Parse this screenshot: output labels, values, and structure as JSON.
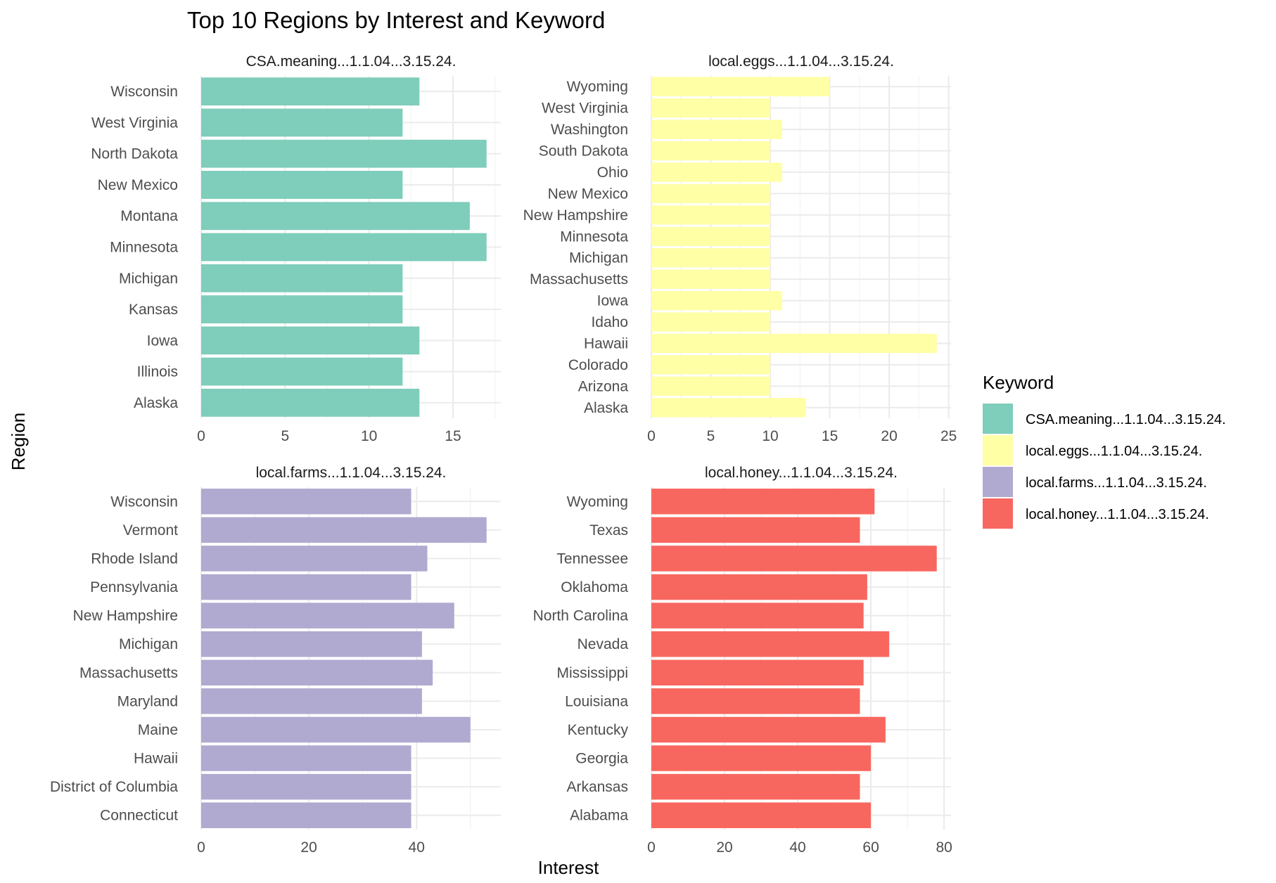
{
  "chart_data": {
    "type": "bar",
    "orientation": "horizontal",
    "title": "Top 10 Regions by Interest and Keyword",
    "xlabel": "Interest",
    "ylabel": "Region",
    "grid": true,
    "legend": {
      "title": "Keyword",
      "position": "right",
      "entries": [
        {
          "label": "CSA.meaning...1.1.04...3.15.24.",
          "color": "#7fcdbb"
        },
        {
          "label": "local.eggs...1.1.04...3.15.24.",
          "color": "#ffffa6"
        },
        {
          "label": "local.farms...1.1.04...3.15.24.",
          "color": "#b0aad0"
        },
        {
          "label": "local.honey...1.1.04...3.15.24.",
          "color": "#f8675f"
        }
      ]
    },
    "panels": [
      {
        "title": "CSA.meaning...1.1.04...3.15.24.",
        "color": "#7fcdbb",
        "xlim": [
          0,
          17.85
        ],
        "xticks": [
          0,
          5,
          10,
          15
        ],
        "categories": [
          "Wisconsin",
          "West Virginia",
          "North Dakota",
          "New Mexico",
          "Montana",
          "Minnesota",
          "Michigan",
          "Kansas",
          "Iowa",
          "Illinois",
          "Alaska"
        ],
        "values": [
          13,
          12,
          17,
          12,
          16,
          17,
          12,
          12,
          13,
          12,
          13
        ]
      },
      {
        "title": "local.eggs...1.1.04...3.15.24.",
        "color": "#ffffa6",
        "xlim": [
          0,
          25.2
        ],
        "xticks": [
          0,
          5,
          10,
          15,
          20,
          25
        ],
        "categories": [
          "Wyoming",
          "West Virginia",
          "Washington",
          "South Dakota",
          "Ohio",
          "New Mexico",
          "New Hampshire",
          "Minnesota",
          "Michigan",
          "Massachusetts",
          "Iowa",
          "Idaho",
          "Hawaii",
          "Colorado",
          "Arizona",
          "Alaska"
        ],
        "values": [
          15,
          10,
          11,
          10,
          11,
          10,
          10,
          10,
          10,
          10,
          11,
          10,
          24,
          10,
          10,
          13
        ]
      },
      {
        "title": "local.farms...1.1.04...3.15.24.",
        "color": "#b0aad0",
        "xlim": [
          0,
          55.65
        ],
        "xticks": [
          0,
          20,
          40
        ],
        "categories": [
          "Wisconsin",
          "Vermont",
          "Rhode Island",
          "Pennsylvania",
          "New Hampshire",
          "Michigan",
          "Massachusetts",
          "Maryland",
          "Maine",
          "Hawaii",
          "District of Columbia",
          "Connecticut"
        ],
        "values": [
          39,
          53,
          42,
          39,
          47,
          41,
          43,
          41,
          50,
          39,
          39,
          39
        ]
      },
      {
        "title": "local.honey...1.1.04...3.15.24.",
        "color": "#f8675f",
        "xlim": [
          0,
          81.9
        ],
        "xticks": [
          0,
          20,
          40,
          60,
          80
        ],
        "categories": [
          "Wyoming",
          "Texas",
          "Tennessee",
          "Oklahoma",
          "North Carolina",
          "Nevada",
          "Mississippi",
          "Louisiana",
          "Kentucky",
          "Georgia",
          "Arkansas",
          "Alabama"
        ],
        "values": [
          61,
          57,
          78,
          59,
          58,
          65,
          58,
          57,
          64,
          60,
          57,
          60
        ]
      }
    ]
  }
}
